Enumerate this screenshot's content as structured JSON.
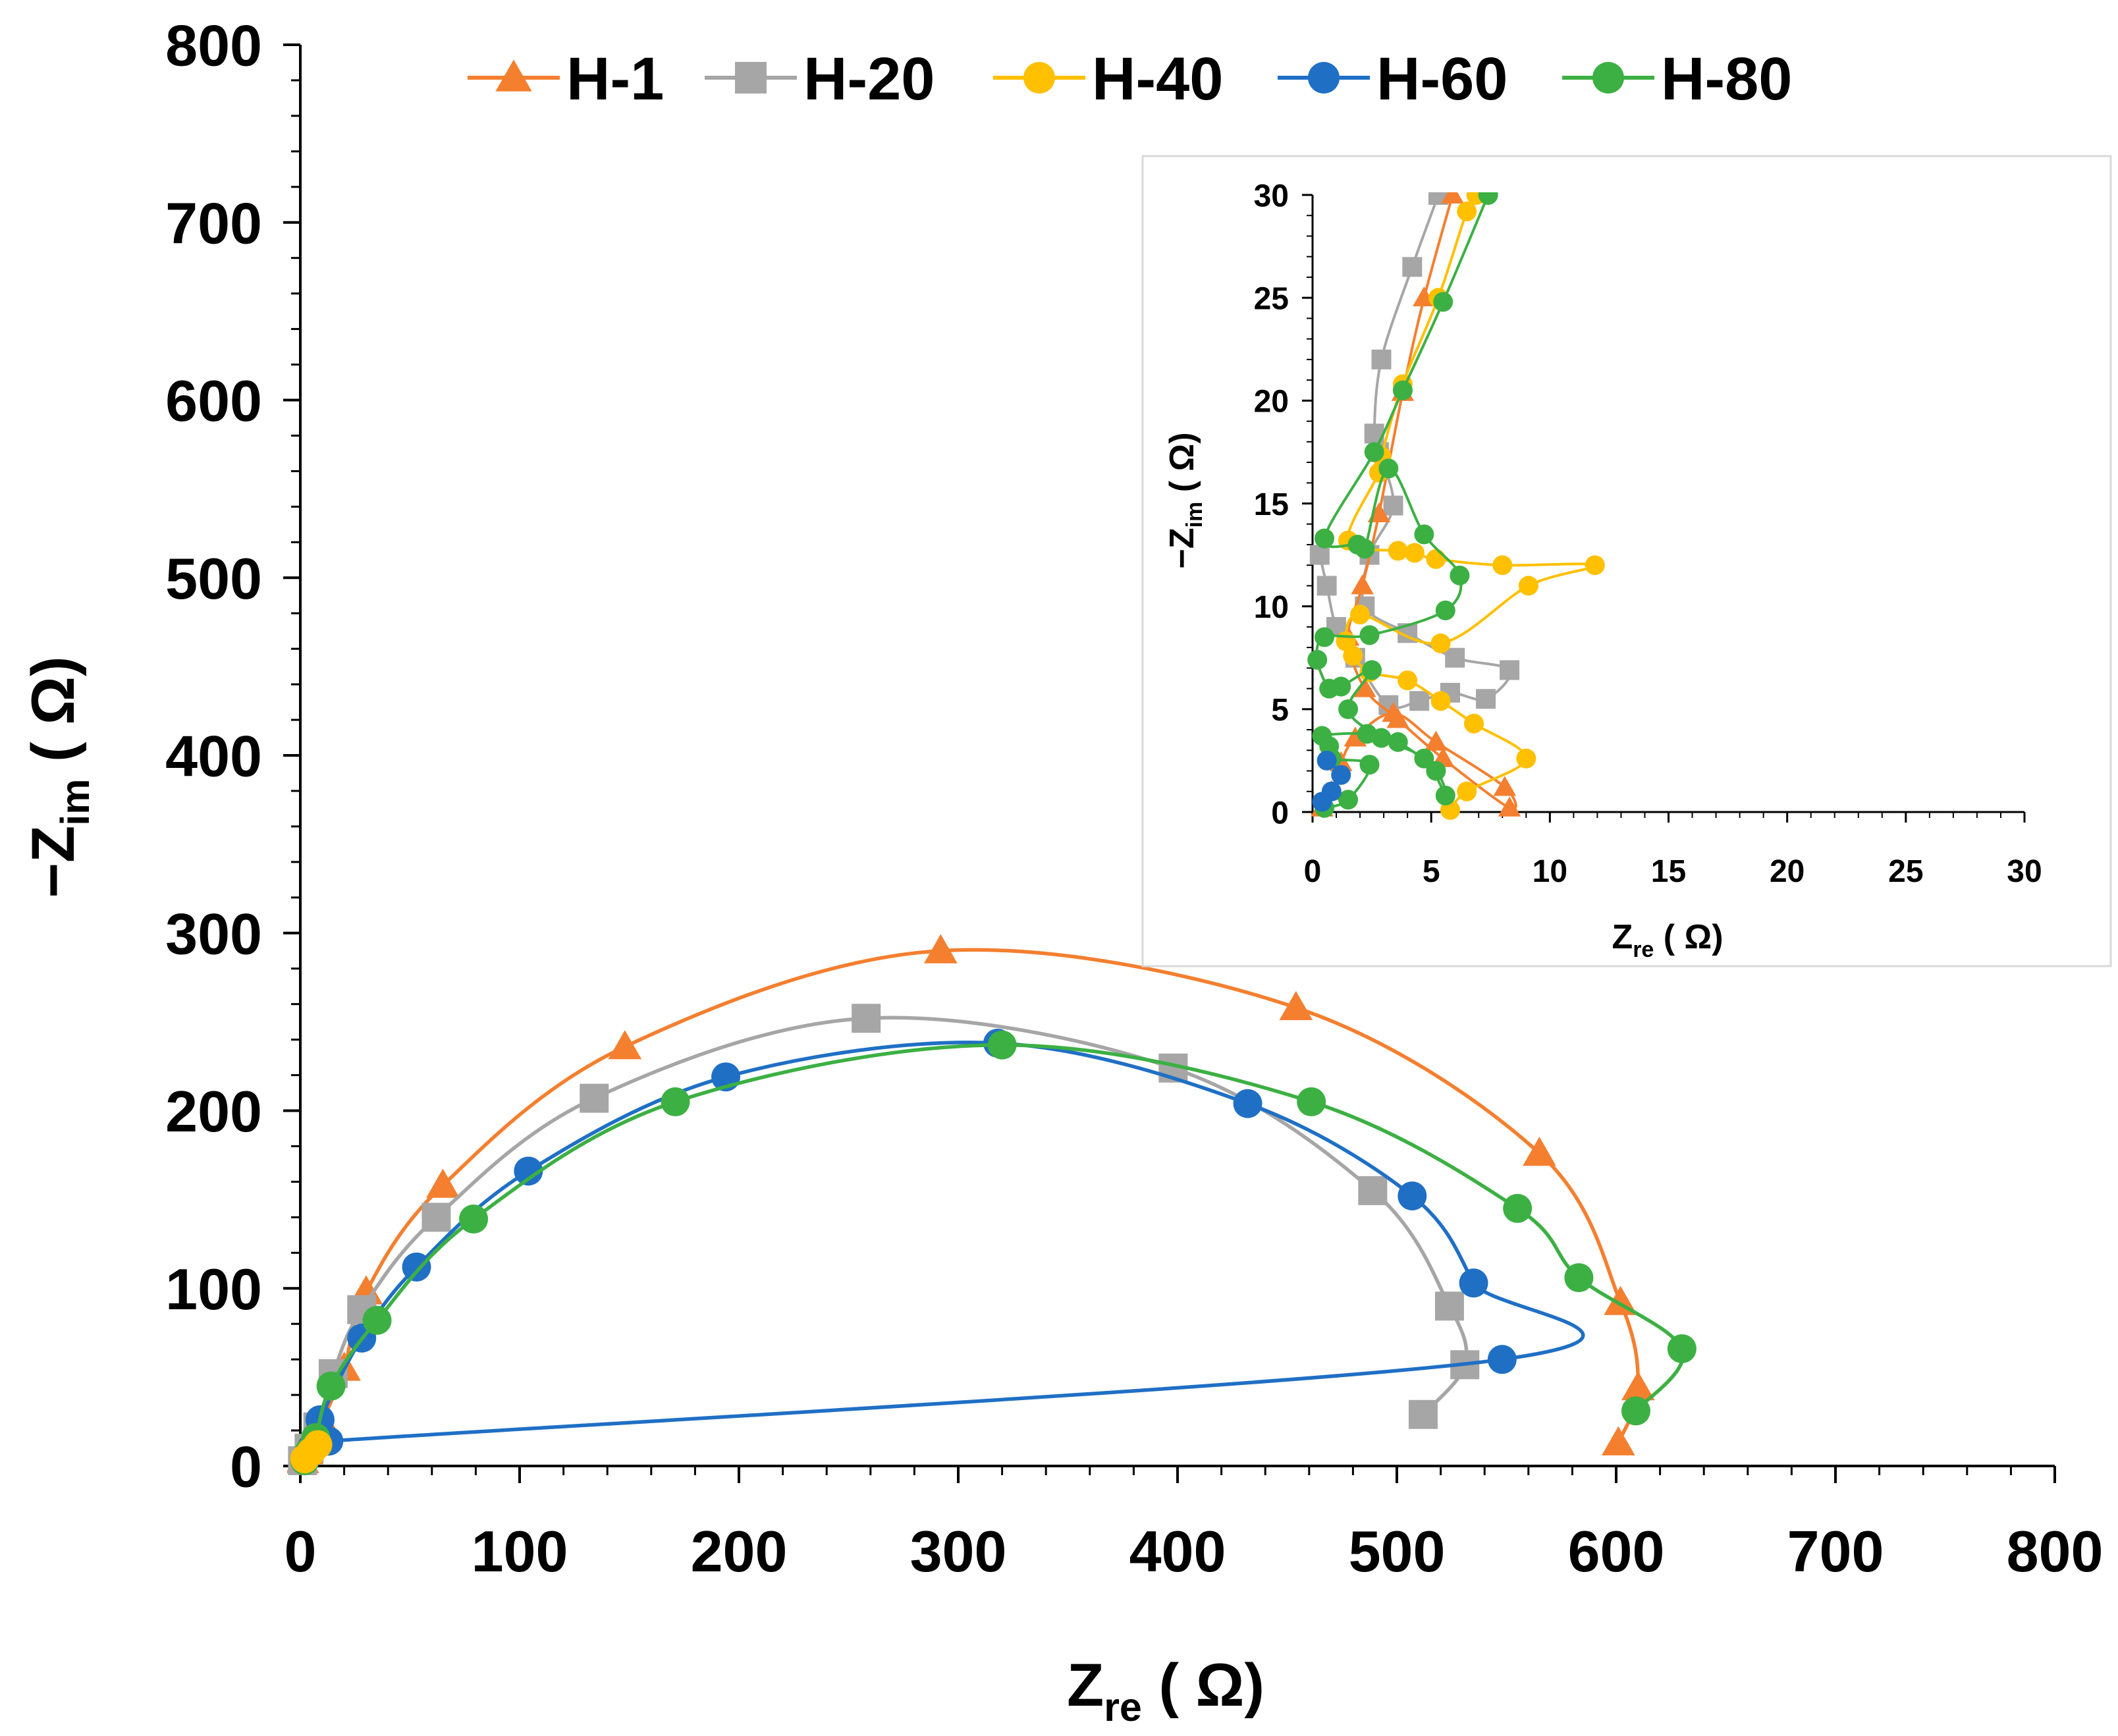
{
  "chart_data": [
    {
      "type": "line",
      "panel": "main",
      "xlabel": "Z",
      "xlabel_sub": "re",
      "xlabel_unit": " ( Ω)",
      "ylabel": "−Z",
      "ylabel_sub": "im",
      "ylabel_unit": " ( Ω)",
      "xlim": [
        0,
        800
      ],
      "ylim": [
        0,
        800
      ],
      "xticks": [
        0,
        100,
        200,
        300,
        400,
        500,
        600,
        700,
        800
      ],
      "yticks": [
        0,
        100,
        200,
        300,
        400,
        500,
        600,
        700,
        800
      ],
      "legend_position": "top",
      "series": [
        {
          "name": "H-1",
          "color": "#F47F2F",
          "marker": "triangle",
          "points": [
            [
              1,
              3
            ],
            [
              3,
              8
            ],
            [
              6,
              15
            ],
            [
              10,
              25
            ],
            [
              20,
              55
            ],
            [
              30,
              98
            ],
            [
              65,
              158
            ],
            [
              148,
              236
            ],
            [
              292,
              290
            ],
            [
              454,
              258
            ],
            [
              565,
              176
            ],
            [
              602,
              92
            ],
            [
              610,
              44
            ],
            [
              601,
              13
            ]
          ]
        },
        {
          "name": "H-20",
          "color": "#A6A6A6",
          "marker": "square",
          "points": [
            [
              1,
              3
            ],
            [
              4,
              10
            ],
            [
              8,
              22
            ],
            [
              15,
              52
            ],
            [
              28,
              88
            ],
            [
              62,
              140
            ],
            [
              134,
              207
            ],
            [
              258,
              252
            ],
            [
              398,
              224
            ],
            [
              489,
              155
            ],
            [
              524,
              90
            ],
            [
              531,
              57
            ],
            [
              512,
              29
            ]
          ]
        },
        {
          "name": "H-60",
          "color": "#1F6FC5",
          "marker": "circle",
          "points": [
            [
              2,
              3
            ],
            [
              5,
              10
            ],
            [
              9,
              26
            ],
            [
              28,
              72
            ],
            [
              53,
              112
            ],
            [
              104,
              166
            ],
            [
              194,
              219
            ],
            [
              318,
              238
            ],
            [
              432,
              204
            ],
            [
              507,
              152
            ],
            [
              535,
              103
            ],
            [
              548,
              60
            ],
            [
              13,
              14
            ]
          ]
        },
        {
          "name": "H-80",
          "color": "#3CB043",
          "marker": "circle",
          "points": [
            [
              2,
              3
            ],
            [
              4,
              8
            ],
            [
              7,
              16
            ],
            [
              14,
              45
            ],
            [
              35,
              82
            ],
            [
              79,
              139
            ],
            [
              171,
              205
            ],
            [
              320,
              237
            ],
            [
              461,
              205
            ],
            [
              555,
              145
            ],
            [
              583,
              106
            ],
            [
              630,
              66
            ],
            [
              609,
              31
            ]
          ]
        },
        {
          "name": "H-40",
          "color": "#FFC000",
          "marker": "circle",
          "points": [
            [
              2,
              4
            ],
            [
              5,
              8
            ],
            [
              8,
              12
            ]
          ]
        }
      ]
    },
    {
      "type": "line",
      "panel": "inset",
      "xlabel": "Z",
      "xlabel_sub": "re",
      "xlabel_unit": " ( Ω)",
      "ylabel": "−Z",
      "ylabel_sub": "im",
      "ylabel_unit": " ( Ω)",
      "xlim": [
        0,
        30
      ],
      "ylim": [
        0,
        30
      ],
      "xticks": [
        0,
        5,
        10,
        15,
        20,
        25,
        30
      ],
      "yticks": [
        0,
        5,
        10,
        15,
        20,
        25,
        30
      ],
      "series": [
        {
          "name": "H-20",
          "color": "#A6A6A6",
          "marker": "square",
          "points": [
            [
              0.3,
              12.5
            ],
            [
              0.6,
              11
            ],
            [
              1,
              9
            ],
            [
              1.8,
              7.5
            ],
            [
              3.2,
              5.2
            ],
            [
              4.5,
              5.4
            ],
            [
              5.8,
              5.8
            ],
            [
              7.3,
              5.5
            ],
            [
              8.3,
              6.9
            ],
            [
              6,
              7.5
            ],
            [
              4,
              8.7
            ],
            [
              2.2,
              10
            ],
            [
              2.4,
              12.5
            ],
            [
              3.4,
              14.9
            ],
            [
              2.8,
              17.5
            ],
            [
              2.6,
              18.4
            ],
            [
              2.9,
              22
            ],
            [
              4.2,
              26.5
            ],
            [
              5.3,
              30
            ]
          ]
        },
        {
          "name": "H-1",
          "color": "#F47F2F",
          "marker": "triangle",
          "points": [
            [
              0.4,
              0.2
            ],
            [
              0.8,
              1
            ],
            [
              1.2,
              2.4
            ],
            [
              1.8,
              3.6
            ],
            [
              3.4,
              4.8
            ],
            [
              5.2,
              3.4
            ],
            [
              8.1,
              1.2
            ],
            [
              8.3,
              0.2
            ],
            [
              5.5,
              2.6
            ],
            [
              3.6,
              4.5
            ],
            [
              2.2,
              6
            ],
            [
              1.5,
              8.5
            ],
            [
              2.1,
              11
            ],
            [
              2.8,
              14.5
            ],
            [
              3.8,
              20.4
            ],
            [
              4.7,
              25
            ],
            [
              5.9,
              30
            ]
          ]
        },
        {
          "name": "H-40",
          "color": "#FFC000",
          "marker": "circle",
          "points": [
            [
              5.8,
              0.1
            ],
            [
              6.5,
              1
            ],
            [
              9,
              2.6
            ],
            [
              6.8,
              4.3
            ],
            [
              5.4,
              5.4
            ],
            [
              4,
              6.4
            ],
            [
              2.4,
              6.8
            ],
            [
              1.7,
              7.6
            ],
            [
              1.4,
              8.3
            ],
            [
              2,
              9.6
            ],
            [
              5.4,
              8.2
            ],
            [
              9.1,
              11
            ],
            [
              11.9,
              12
            ],
            [
              8,
              12
            ],
            [
              5.2,
              12.3
            ],
            [
              4.3,
              12.6
            ],
            [
              3.6,
              12.7
            ],
            [
              1.5,
              13.2
            ],
            [
              2.8,
              16.5
            ],
            [
              2.9,
              17.3
            ],
            [
              3.8,
              20.8
            ],
            [
              5.3,
              25
            ],
            [
              6.5,
              29.2
            ],
            [
              6.9,
              30
            ]
          ]
        },
        {
          "name": "H-80",
          "color": "#3CB043",
          "marker": "circle",
          "points": [
            [
              0.5,
              0.2
            ],
            [
              1.5,
              0.6
            ],
            [
              2.4,
              2.3
            ],
            [
              0.8,
              2.6
            ],
            [
              0.7,
              3.2
            ],
            [
              0.4,
              3.7
            ],
            [
              2.3,
              3.8
            ],
            [
              3.6,
              3.4
            ],
            [
              5.2,
              2
            ],
            [
              5.6,
              0.8
            ],
            [
              4.7,
              2.6
            ],
            [
              2.9,
              3.6
            ],
            [
              1.5,
              5
            ],
            [
              2.5,
              6.9
            ],
            [
              1.2,
              6.1
            ],
            [
              0.7,
              6
            ],
            [
              0.2,
              7.4
            ],
            [
              0.5,
              8.5
            ],
            [
              2.4,
              8.6
            ],
            [
              5.6,
              9.8
            ],
            [
              6.2,
              11.5
            ],
            [
              4.7,
              13.5
            ],
            [
              3.2,
              16.7
            ],
            [
              2.2,
              12.8
            ],
            [
              1.9,
              13
            ],
            [
              0.5,
              13.3
            ],
            [
              2.6,
              17.5
            ],
            [
              3.8,
              20.5
            ],
            [
              5.5,
              24.8
            ],
            [
              7.4,
              30
            ]
          ]
        },
        {
          "name": "H-60",
          "color": "#1F6FC5",
          "marker": "circle",
          "points": [
            [
              0.4,
              0.5
            ],
            [
              0.8,
              1
            ],
            [
              1.2,
              1.8
            ],
            [
              0.6,
              2.5
            ]
          ]
        }
      ]
    }
  ],
  "legend": {
    "items": [
      {
        "name": "H-1",
        "color": "#F47F2F",
        "marker": "triangle"
      },
      {
        "name": "H-20",
        "color": "#A6A6A6",
        "marker": "square"
      },
      {
        "name": "H-40",
        "color": "#FFC000",
        "marker": "circle"
      },
      {
        "name": "H-60",
        "color": "#1F6FC5",
        "marker": "circle"
      },
      {
        "name": "H-80",
        "color": "#3CB043",
        "marker": "circle"
      }
    ]
  }
}
